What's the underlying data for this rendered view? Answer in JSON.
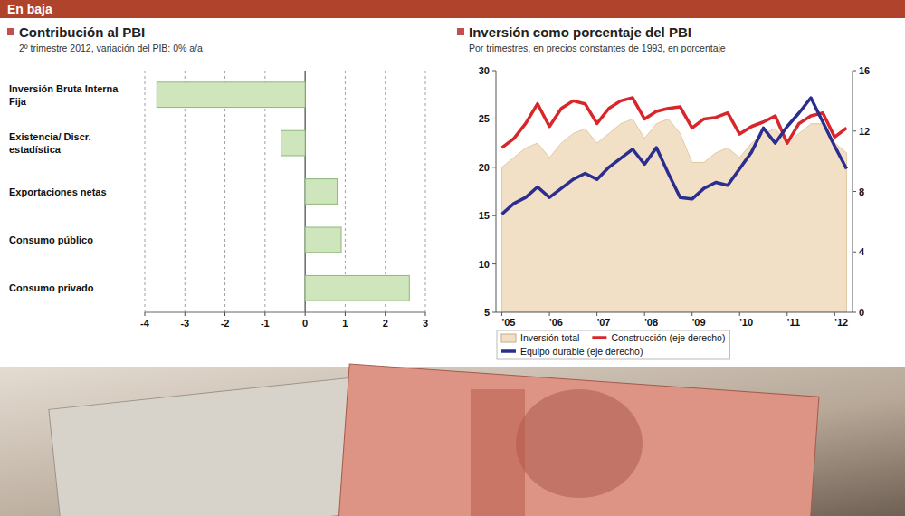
{
  "header": {
    "title": "En baja"
  },
  "chart_data": [
    {
      "type": "bar",
      "title": "Contribución al PBI",
      "subtitle": "2º trimestre 2012, variación del PIB: 0% a/a",
      "orientation": "horizontal",
      "categories": [
        "Inversión Bruta Interna Fija",
        "Existencia/ Discr. estadística",
        "Exportaciones netas",
        "Consumo público",
        "Consumo privado"
      ],
      "values": [
        -3.7,
        -0.6,
        0.8,
        0.9,
        2.6
      ],
      "color": "#cfe6bd",
      "xlim": [
        -4,
        3
      ],
      "xticks": [
        -4,
        -3,
        -2,
        -1,
        0,
        1,
        2,
        3
      ],
      "grid": true
    },
    {
      "type": "line",
      "title": "Inversión como porcentaje del PBI",
      "subtitle": "Por trimestres, en precios constantes de 1993, en porcentaje",
      "categories": [
        "'05",
        null,
        null,
        null,
        "'06",
        null,
        null,
        null,
        "'07",
        null,
        null,
        null,
        "'08",
        null,
        null,
        null,
        "'09",
        null,
        null,
        null,
        "'10",
        null,
        null,
        null,
        "'11",
        null,
        null,
        null,
        "'12",
        null
      ],
      "series": [
        {
          "name": "Inversión total",
          "type": "area",
          "color": "#f1dfc6",
          "values": [
            20,
            21,
            22,
            22.5,
            21,
            22.5,
            23.5,
            24,
            22.5,
            23.5,
            24.5,
            25,
            23,
            24.5,
            25,
            23.5,
            20.5,
            20.5,
            21.5,
            22,
            21,
            22.5,
            23.5,
            24,
            22.5,
            23.5,
            24.5,
            24.5,
            22.5,
            21.5
          ]
        },
        {
          "name": "Construcción (eje derecho)",
          "type": "line",
          "color": "#d9262b",
          "axis": "y2",
          "values": [
            10.9,
            11.5,
            12.5,
            13.8,
            12.3,
            13.5,
            14,
            13.8,
            12.5,
            13.5,
            14,
            14.2,
            12.8,
            13.3,
            13.5,
            13.6,
            12.2,
            12.8,
            12.9,
            13.2,
            11.8,
            12.3,
            12.6,
            13,
            11.2,
            12.5,
            13,
            13.2,
            11.6,
            12.2
          ]
        },
        {
          "name": "Equipo durable (eje derecho)",
          "type": "line",
          "color": "#2b2d8f",
          "axis": "y2",
          "values": [
            6.5,
            7.2,
            7.6,
            8.3,
            7.6,
            8.2,
            8.8,
            9.2,
            8.8,
            9.6,
            10.2,
            10.8,
            9.8,
            10.9,
            9.2,
            7.6,
            7.5,
            8.2,
            8.6,
            8.4,
            9.5,
            10.6,
            12.2,
            11.2,
            12.3,
            13.2,
            14.2,
            12.6,
            11,
            9.5
          ]
        }
      ],
      "ylim": [
        5,
        30
      ],
      "yticks": [
        5,
        10,
        15,
        20,
        25,
        30
      ],
      "y2lim": [
        0,
        16
      ],
      "y2ticks": [
        0,
        4,
        8,
        12,
        16
      ],
      "legend": "bottom"
    }
  ]
}
